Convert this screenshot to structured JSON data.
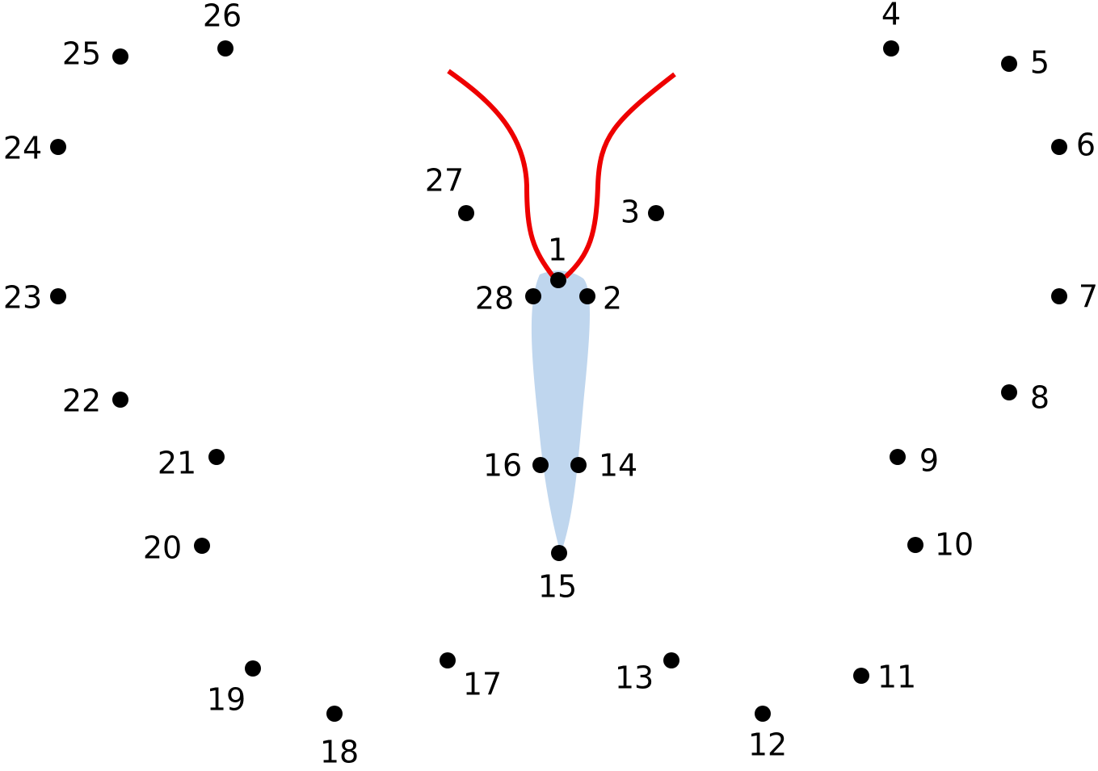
{
  "dots": [
    "1",
    "2",
    "3",
    "4",
    "5",
    "6",
    "7",
    "8",
    "9",
    "10",
    "11",
    "12",
    "13",
    "14",
    "15",
    "16",
    "17",
    "18",
    "19",
    "20",
    "21",
    "22",
    "23",
    "24",
    "25",
    "26",
    "27",
    "28"
  ]
}
